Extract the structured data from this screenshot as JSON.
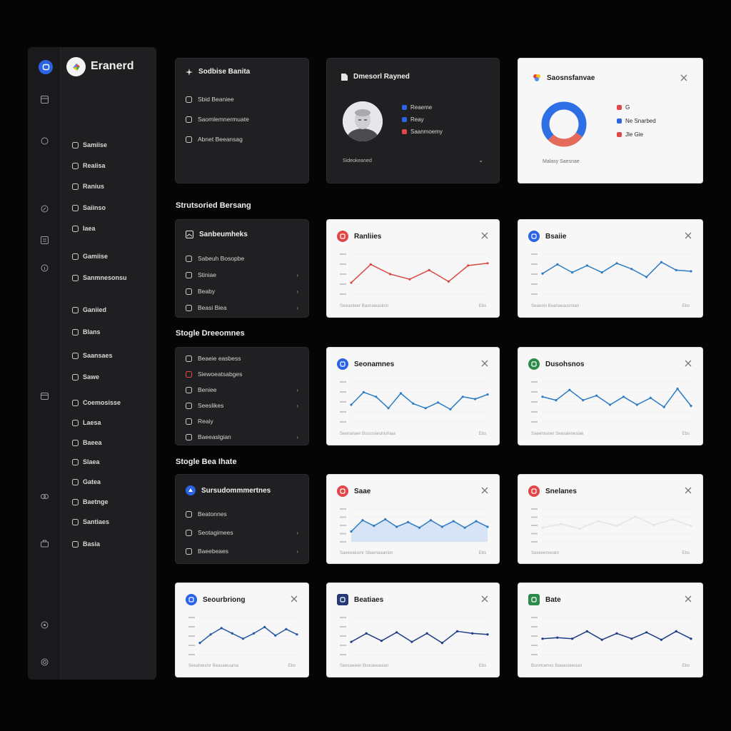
{
  "sidebar": {
    "brand_name": "Eranerd",
    "items": [
      {
        "label": "Samiise"
      },
      {
        "label": "Reaiisa"
      },
      {
        "label": "Ranius"
      },
      {
        "label": "Saiinso"
      },
      {
        "label": "Iaea"
      },
      {
        "label": "Gamiise"
      },
      {
        "label": "Sanmnesonsu"
      },
      {
        "label": "Ganiied"
      },
      {
        "label": "Blans"
      },
      {
        "label": "Saansaes"
      },
      {
        "label": "Sawe"
      },
      {
        "label": "Coemosisse"
      },
      {
        "label": "Laesa"
      },
      {
        "label": "Baeea"
      },
      {
        "label": "Slaea"
      },
      {
        "label": "Gatea"
      },
      {
        "label": "Baetnge"
      },
      {
        "label": "Santiaes"
      },
      {
        "label": "Basia"
      }
    ]
  },
  "panel1": {
    "title": "Sodbise Banita",
    "items": [
      {
        "label": "Sbid Beaniee"
      },
      {
        "label": "Saomlemnermuate"
      },
      {
        "label": "Abnet Beeansag"
      }
    ]
  },
  "profile": {
    "title": "Dmesorl Rayned",
    "legend": [
      {
        "label": "Reaeme",
        "color": "#2a63e4"
      },
      {
        "label": "Reay",
        "color": "#2a63e4"
      },
      {
        "label": "Saanmoemy",
        "color": "#e04848"
      }
    ],
    "footer": "Sideokeaned"
  },
  "donut_card": {
    "title": "Saosnsfanvae",
    "legend": [
      {
        "label": "G",
        "color": "#e04848"
      },
      {
        "label": "Ne Snarbed",
        "color": "#2a63e4"
      },
      {
        "label": "Jle Gie",
        "color": "#e04848"
      }
    ],
    "footer": "Malasy Saesnae",
    "chart_data": {
      "type": "pie",
      "values": [
        72,
        28
      ],
      "colors": [
        "#2f6fe6",
        "#e46a5a"
      ]
    }
  },
  "sections": {
    "s1": "Strutsoried Bersang",
    "s2": "Stogle Dreeomnes",
    "s3": "Stogle Bea Ihate"
  },
  "panel2": {
    "title": "Sanbeumheks",
    "items": [
      {
        "label": "Sabeuh Bosopbe",
        "chev": ""
      },
      {
        "label": "Stiniae",
        "chev": "›"
      },
      {
        "label": "Beaby",
        "chev": "›"
      },
      {
        "label": "Beasi Biea",
        "chev": "›"
      }
    ]
  },
  "panel3": {
    "items": [
      {
        "label": "Beaeie easbess",
        "chev": ""
      },
      {
        "label": "Siewoeatsabges",
        "chev": ""
      },
      {
        "label": "Beniee",
        "chev": "›"
      },
      {
        "label": "Seeslikes",
        "chev": "›"
      },
      {
        "label": "Reaiy",
        "chev": ""
      },
      {
        "label": "Baeeaslgian",
        "chev": "›"
      }
    ]
  },
  "panel4": {
    "title": "Sursudommmertnes",
    "items": [
      {
        "label": "Beatonnes",
        "chev": ""
      },
      {
        "label": "Seotagimees",
        "chev": "›"
      },
      {
        "label": "Baeebeaes",
        "chev": "›"
      }
    ]
  },
  "cards": {
    "c1": {
      "title": "Ranliies",
      "accent": "#e04848",
      "line": "#d94a42",
      "footer": "Seeuotieer Basnaieasiion",
      "footer_r": "Ebs",
      "chart_data": {
        "type": "line",
        "series": [
          {
            "values": [
              20,
              52,
              35,
              26,
              42,
              22,
              50,
              54
            ]
          }
        ],
        "ylim": [
          0,
          70
        ]
      }
    },
    "c2": {
      "title": "Bsaiie",
      "accent": "#2a63e4",
      "line": "#2b7cc4",
      "footer": "Seaeoin Beanaeausmian",
      "footer_r": "Ebs",
      "chart_data": {
        "type": "line",
        "series": [
          {
            "values": [
              36,
              52,
              38,
              50,
              38,
              54,
              44,
              30,
              56,
              42,
              40
            ]
          }
        ],
        "ylim": [
          0,
          70
        ]
      }
    },
    "c3": {
      "title": "Seonamnes",
      "accent": "#2a63e4",
      "line": "#2b7cc4",
      "footer": "Seenanaer Bsssssieumuhiaa",
      "footer_r": "Ebs",
      "chart_data": {
        "type": "line",
        "series": [
          {
            "values": [
              30,
              52,
              44,
              24,
              50,
              32,
              24,
              34,
              22,
              44,
              40,
              48
            ]
          }
        ],
        "ylim": [
          0,
          70
        ]
      }
    },
    "c4": {
      "title": "Dusohsnos",
      "accent": "#2c8a4a",
      "line": "#2b7cc4",
      "footer": "Saeemianer Seasaienesiae",
      "footer_r": "Ebs",
      "chart_data": {
        "type": "line",
        "series": [
          {
            "values": [
              44,
              38,
              56,
              38,
              46,
              30,
              44,
              30,
              42,
              26,
              58,
              28
            ]
          }
        ],
        "ylim": [
          0,
          70
        ]
      }
    },
    "c5": {
      "title": "Saae",
      "accent": "#e04848",
      "line": "#2b7cc4",
      "fill": "#d6e4f5",
      "footer": "Saeeealuenr Sbaenaaanion",
      "footer_r": "Ebs",
      "chart_data": {
        "type": "area",
        "series": [
          {
            "values": [
              22,
              46,
              34,
              48,
              32,
              42,
              30,
              46,
              32,
              44,
              30,
              44,
              32
            ]
          }
        ],
        "ylim": [
          0,
          70
        ]
      }
    },
    "c6": {
      "title": "Snelanes",
      "accent": "#e04848",
      "line": "#e3e4e8",
      "footer": "Saseeemeranr",
      "footer_r": "Ebs",
      "chart_data": {
        "type": "line",
        "series": [
          {
            "values": [
              30,
              38,
              28,
              44,
              34,
              54,
              36,
              48,
              34
            ]
          }
        ],
        "ylim": [
          0,
          70
        ]
      }
    },
    "c7": {
      "title": "Seourbriong",
      "accent": "#2a63e4",
      "line": "#2858a4",
      "footer": "Seeatoesinr Beasaieuania",
      "footer_r": "Ebs",
      "chart_data": {
        "type": "line",
        "series": [
          {
            "values": [
              22,
              38,
              50,
              40,
              30,
              40,
              52,
              36,
              48,
              38
            ]
          }
        ],
        "ylim": [
          0,
          70
        ]
      }
    },
    "c8": {
      "title": "Beatiaes",
      "accent": "#243a70",
      "line": "#1e3c86",
      "footer": "Seesueieer Boasieeasian",
      "footer_r": "Ebs",
      "chart_data": {
        "type": "line",
        "series": [
          {
            "values": [
              24,
              40,
              26,
              42,
              24,
              40,
              22,
              44,
              40,
              38
            ]
          }
        ],
        "ylim": [
          0,
          70
        ]
      }
    },
    "c9": {
      "title": "Bate",
      "accent": "#2c8a4a",
      "line": "#1e3c86",
      "footer": "Bsnmoenes Baeasseesian",
      "footer_r": "Ebs",
      "chart_data": {
        "type": "line",
        "series": [
          {
            "values": [
              30,
              32,
              30,
              44,
              28,
              40,
              30,
              42,
              28,
              44,
              30
            ]
          }
        ],
        "ylim": [
          0,
          70
        ]
      }
    }
  }
}
